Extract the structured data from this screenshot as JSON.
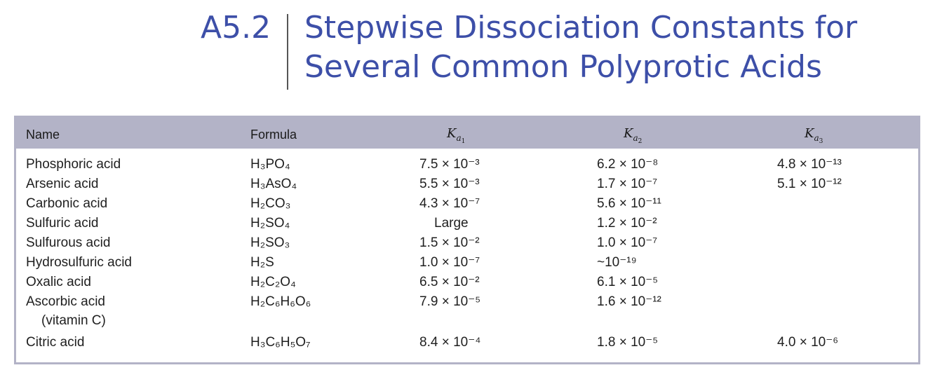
{
  "title": {
    "number": "A5.2",
    "line1": "Stepwise Dissociation Constants for",
    "line2": "Several Common Polyprotic Acids"
  },
  "table": {
    "headers": {
      "name": "Name",
      "formula": "Formula",
      "k1": "K",
      "k2": "K",
      "k3": "K",
      "k_sub": "a"
    },
    "rows": [
      {
        "name": "Phosphoric acid",
        "formula": "H₃PO₄",
        "k1": "7.5 × 10⁻³",
        "k2": "6.2 × 10⁻⁸",
        "k3": "4.8 × 10⁻¹³"
      },
      {
        "name": "Arsenic acid",
        "formula": "H₃AsO₄",
        "k1": "5.5 × 10⁻³",
        "k2": "1.7 × 10⁻⁷",
        "k3": "5.1 × 10⁻¹²"
      },
      {
        "name": "Carbonic acid",
        "formula": "H₂CO₃",
        "k1": "4.3 × 10⁻⁷",
        "k2": "5.6 × 10⁻¹¹",
        "k3": ""
      },
      {
        "name": "Sulfuric acid",
        "formula": "H₂SO₄",
        "k1": "Large",
        "k2": "1.2 × 10⁻²",
        "k3": ""
      },
      {
        "name": "Sulfurous acid",
        "formula": "H₂SO₃",
        "k1": "1.5 × 10⁻²",
        "k2": "1.0 × 10⁻⁷",
        "k3": ""
      },
      {
        "name": "Hydrosulfuric acid",
        "formula": "H₂S",
        "k1": "1.0 × 10⁻⁷",
        "k2": "~10⁻¹⁹",
        "k3": ""
      },
      {
        "name": "Oxalic acid",
        "formula": "H₂C₂O₄",
        "k1": "6.5 × 10⁻²",
        "k2": "6.1 × 10⁻⁵",
        "k3": ""
      },
      {
        "name": "Ascorbic acid",
        "name_note": "(vitamin C)",
        "formula": "H₂C₆H₆O₆",
        "k1": "7.9 × 10⁻⁵",
        "k2": "1.6 × 10⁻¹²",
        "k3": ""
      },
      {
        "name": "Citric acid",
        "formula": "H₃C₆H₅O₇",
        "k1": "8.4 × 10⁻⁴",
        "k2": "1.8 × 10⁻⁵",
        "k3": "4.0 × 10⁻⁶"
      }
    ]
  }
}
